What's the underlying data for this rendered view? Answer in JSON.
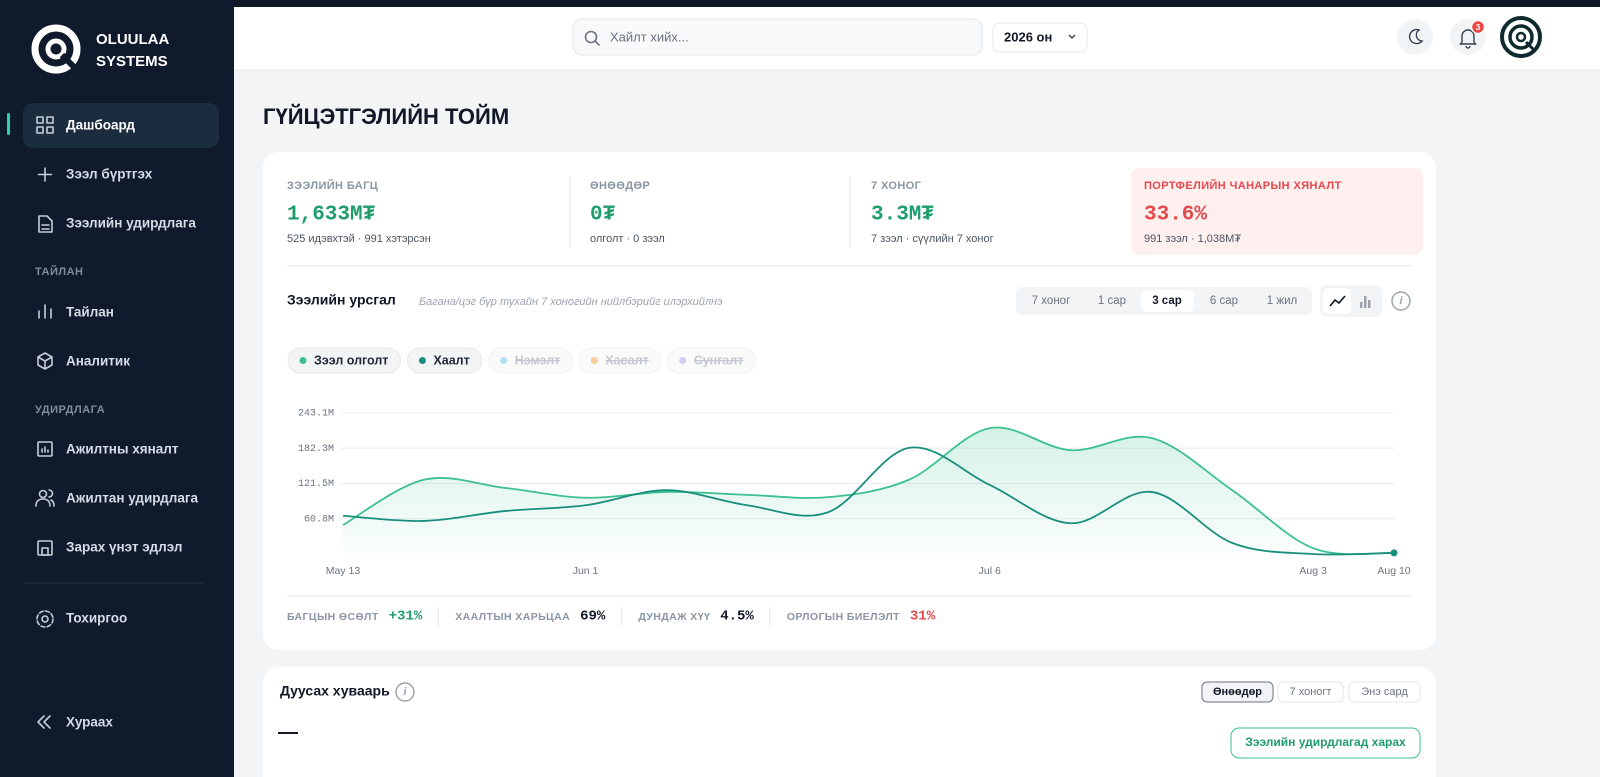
{
  "sidebar": {
    "brand": [
      "OLUULAA",
      "SYSTEMS"
    ],
    "nav": [
      "Дашбоард",
      "Зээл бүртгэх",
      "Зээлийн удирдлага"
    ],
    "sections": [
      {
        "title": "ТАЙЛАН",
        "items": [
          "Тайлан",
          "Аналитик"
        ]
      },
      {
        "title": "УДИРДЛАГА",
        "items": [
          "Ажилтны хяналт",
          "Ажилтан удирдлага",
          "Зарах үнэт эдлэл"
        ]
      }
    ],
    "settings": "Тохиргоо",
    "collapse": "Хураах"
  },
  "topbar": {
    "search_placeholder": "Хайлт хийх...",
    "year": "2026 он",
    "notification_count": 3
  },
  "page_title": "ГҮЙЦЭТГЭЛИЙН ТОЙМ",
  "kpis": [
    {
      "label": "ЗЭЭЛИЙН БАГЦ",
      "value": "1,633M₮",
      "sub": "525 идэвхтэй · 991 хэтэрсэн",
      "color": "#1f9d6b"
    },
    {
      "label": "ӨНӨӨДӨР",
      "value": "0₮",
      "sub": "олголт · 0 зээл",
      "color": "#1f9d6b"
    },
    {
      "label": "7 ХОНОГ",
      "value": "3.3M₮",
      "sub": "7 зээл · сүүлийн 7 хоног",
      "color": "#1f9d6b"
    },
    {
      "label": "ПОРТФЕЛИЙН ЧАНАРЫН ХЯНАЛТ",
      "value": "33.6%",
      "sub": "991 зээл · 1,038M₮",
      "color": "#e5484d"
    }
  ],
  "flow_panel": {
    "title": "Зээлийн урсгал",
    "subtitle": "Багана/цэг бүр тухайн 7 хоногийн нийлбэрийг илэрхийлнэ",
    "ranges": [
      "7 хоног",
      "1 сар",
      "3 сар",
      "6 сар",
      "1 жил"
    ]
  },
  "chart_data": {
    "type": "line",
    "categories": [
      "May 13",
      null,
      null,
      "Jun 1",
      null,
      null,
      null,
      null,
      "Jul 6",
      null,
      null,
      null,
      "Aug 3",
      "Aug 10"
    ],
    "series": [
      {
        "name": "Зээл олголт",
        "color": "#3cc18e",
        "area": true,
        "values": [
          50,
          128,
          114,
          97,
          107,
          102,
          98,
          128,
          217,
          179,
          200,
          110,
          10,
          2
        ]
      },
      {
        "name": "Хаалт",
        "color": "#1a8f7c",
        "values": [
          66,
          57,
          74,
          84,
          110,
          84,
          72,
          183,
          119,
          53,
          107,
          19,
          0,
          2
        ]
      },
      {
        "name": "Нэмэлт",
        "color": "#8fd3f0",
        "visible": false
      },
      {
        "name": "Хасалт",
        "color": "#f5b971",
        "visible": false
      },
      {
        "name": "Сунгалт",
        "color": "#c9b8f5",
        "visible": false
      }
    ],
    "ylim": [
      0,
      243.1
    ],
    "yticks": [
      {
        "value": 60.8,
        "label": "60.8M"
      },
      {
        "value": 121.5,
        "label": "121.5M"
      },
      {
        "value": 182.3,
        "label": "182.3M"
      },
      {
        "value": 243.1,
        "label": "243.1M"
      }
    ],
    "grid": true
  },
  "stats": [
    {
      "label": "БАГЦЫН ӨСӨЛТ",
      "value": "+31%",
      "color": "#1f9d6b"
    },
    {
      "label": "ХААЛТЫН ХАРЬЦАА",
      "value": "69%",
      "color": "#111827"
    },
    {
      "label": "ДУНДАЖ ХҮҮ",
      "value": "4.5%",
      "color": "#111827"
    },
    {
      "label": "ОРЛОГЫН БИЕЛЭЛТ",
      "value": "31%",
      "color": "#e5484d"
    }
  ],
  "schedule_panel": {
    "title": "Дуусах хуваарь",
    "tabs": [
      "Өнөөдөр",
      "7 хоногт",
      "Энэ сард"
    ],
    "count": "—",
    "button": "Зээлийн удирдлагад харах"
  }
}
